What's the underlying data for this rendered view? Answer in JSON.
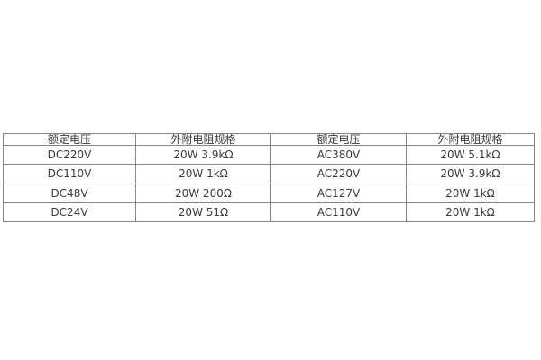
{
  "page": {
    "background_color": "#ffffff",
    "border_color": "#848484",
    "text_color": "#3a3a3a"
  },
  "table": {
    "headers": [
      "额定电压",
      "外附电阻规格",
      "额定电压",
      "外附电阻规格"
    ],
    "rows": [
      [
        "DC220V",
        "20W 3.9kΩ",
        "AC380V",
        "20W 5.1kΩ"
      ],
      [
        "DC110V",
        "20W 1kΩ",
        "AC220V",
        "20W 3.9kΩ"
      ],
      [
        "DC48V",
        "20W 200Ω",
        "AC127V",
        "20W 1kΩ"
      ],
      [
        "DC24V",
        "20W 51Ω",
        "AC110V",
        "20W 1kΩ"
      ]
    ]
  },
  "chart_data": {
    "type": "table",
    "title": "",
    "columns": [
      "额定电压",
      "外附电阻规格",
      "额定电压",
      "外附电阻规格"
    ],
    "rows": [
      {
        "rated_voltage_dc": "DC220V",
        "resistor_spec_dc": "20W 3.9kΩ",
        "rated_voltage_ac": "AC380V",
        "resistor_spec_ac": "20W 5.1kΩ"
      },
      {
        "rated_voltage_dc": "DC110V",
        "resistor_spec_dc": "20W 1kΩ",
        "rated_voltage_ac": "AC220V",
        "resistor_spec_ac": "20W 3.9kΩ"
      },
      {
        "rated_voltage_dc": "DC48V",
        "resistor_spec_dc": "20W 200Ω",
        "rated_voltage_ac": "AC127V",
        "resistor_spec_ac": "20W 1kΩ"
      },
      {
        "rated_voltage_dc": "DC24V",
        "resistor_spec_dc": "20W 51Ω",
        "rated_voltage_ac": "AC110V",
        "resistor_spec_ac": "20W 1kΩ"
      }
    ],
    "layout": {
      "grid": true,
      "header_row": true,
      "cell_alignment": "center"
    }
  }
}
